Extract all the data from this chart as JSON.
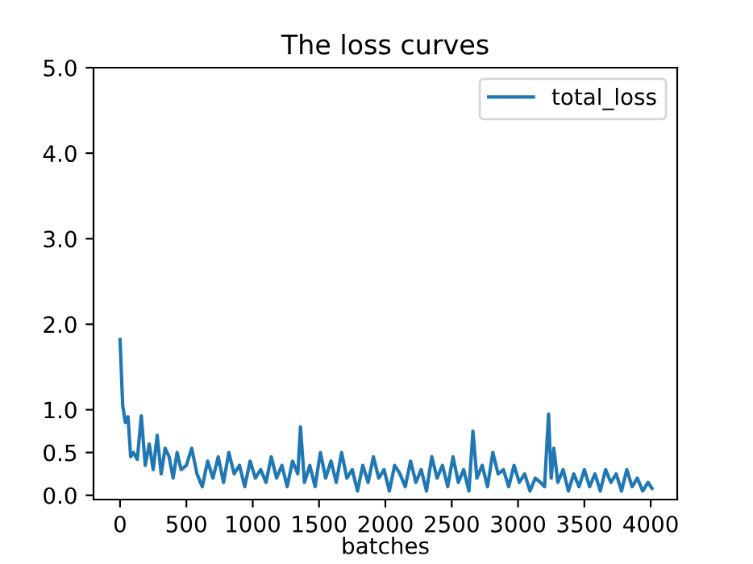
{
  "chart_data": {
    "type": "line",
    "title": "The loss curves",
    "xlabel": "batches",
    "xlim": [
      -200,
      4200
    ],
    "ylim": [
      -0.05,
      5.0
    ],
    "xticks": [
      0,
      500,
      1000,
      1500,
      2000,
      2500,
      3000,
      3500,
      4000
    ],
    "yticks": [
      {
        "value": 0.0,
        "label": "0.0"
      },
      {
        "value": 0.5,
        "label": "0.5"
      },
      {
        "value": 1.0,
        "label": "1.0"
      },
      {
        "value": 2.0,
        "label": "2.0"
      },
      {
        "value": 3.0,
        "label": "3.0"
      },
      {
        "value": 4.0,
        "label": "4.0"
      },
      {
        "value": 5.0,
        "label": "5.0"
      }
    ],
    "legend": "top right",
    "grid": false,
    "marker": "none",
    "line_style": "solid",
    "series": [
      {
        "name": "total_loss",
        "color": "#1f77b4",
        "x": [
          0,
          20,
          40,
          60,
          80,
          100,
          130,
          160,
          190,
          220,
          250,
          280,
          310,
          340,
          370,
          400,
          430,
          460,
          500,
          540,
          580,
          620,
          660,
          700,
          740,
          780,
          820,
          860,
          900,
          940,
          980,
          1020,
          1060,
          1100,
          1140,
          1180,
          1220,
          1260,
          1300,
          1340,
          1360,
          1390,
          1430,
          1470,
          1510,
          1550,
          1590,
          1630,
          1670,
          1710,
          1750,
          1790,
          1830,
          1870,
          1910,
          1950,
          1990,
          2030,
          2070,
          2110,
          2150,
          2190,
          2230,
          2270,
          2310,
          2350,
          2390,
          2430,
          2470,
          2510,
          2550,
          2590,
          2630,
          2660,
          2690,
          2730,
          2770,
          2810,
          2850,
          2890,
          2930,
          2970,
          3010,
          3050,
          3090,
          3130,
          3170,
          3200,
          3230,
          3250,
          3270,
          3300,
          3340,
          3380,
          3420,
          3460,
          3500,
          3540,
          3580,
          3620,
          3660,
          3700,
          3740,
          3780,
          3820,
          3860,
          3900,
          3940,
          3980,
          4010
        ],
        "values": [
          1.82,
          1.05,
          0.85,
          0.92,
          0.45,
          0.5,
          0.42,
          0.93,
          0.35,
          0.6,
          0.3,
          0.7,
          0.25,
          0.55,
          0.45,
          0.2,
          0.5,
          0.3,
          0.35,
          0.55,
          0.25,
          0.1,
          0.4,
          0.2,
          0.45,
          0.15,
          0.5,
          0.25,
          0.35,
          0.1,
          0.4,
          0.2,
          0.3,
          0.15,
          0.45,
          0.2,
          0.35,
          0.1,
          0.4,
          0.25,
          0.8,
          0.15,
          0.35,
          0.1,
          0.5,
          0.2,
          0.4,
          0.15,
          0.5,
          0.2,
          0.3,
          0.05,
          0.35,
          0.15,
          0.45,
          0.2,
          0.3,
          0.05,
          0.35,
          0.25,
          0.1,
          0.4,
          0.15,
          0.3,
          0.05,
          0.45,
          0.2,
          0.35,
          0.1,
          0.45,
          0.15,
          0.3,
          0.05,
          0.75,
          0.2,
          0.35,
          0.1,
          0.5,
          0.25,
          0.3,
          0.1,
          0.35,
          0.15,
          0.25,
          0.05,
          0.2,
          0.15,
          0.1,
          0.95,
          0.2,
          0.55,
          0.15,
          0.3,
          0.05,
          0.25,
          0.1,
          0.3,
          0.1,
          0.25,
          0.05,
          0.3,
          0.15,
          0.25,
          0.05,
          0.3,
          0.1,
          0.2,
          0.05,
          0.15,
          0.08
        ]
      }
    ]
  }
}
